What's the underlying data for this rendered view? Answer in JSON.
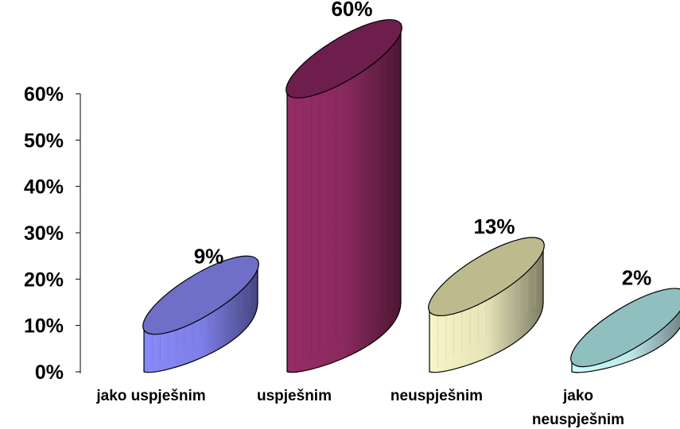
{
  "chart_data": {
    "type": "bar",
    "style": "3d-elliptic-cylinder",
    "categories": [
      "jako uspješnim",
      "uspješnim",
      "neuspješnim",
      "jako neuspješnim"
    ],
    "category_lines": [
      [
        "jako uspješnim"
      ],
      [
        "uspješnim"
      ],
      [
        "neuspješnim"
      ],
      [
        "jako",
        "neuspješnim"
      ]
    ],
    "values": [
      9,
      60,
      13,
      2
    ],
    "data_labels": [
      "9%",
      "60%",
      "13%",
      "2%"
    ],
    "y_ticks": [
      "0%",
      "10%",
      "20%",
      "30%",
      "40%",
      "50%",
      "60%"
    ],
    "ylim": [
      0,
      60
    ],
    "grid": false,
    "colors": [
      "#7f7fe8",
      "#8a2a5e",
      "#e6e4b8",
      "#bfe8ea"
    ],
    "top_colors": [
      "#6f6fc8",
      "#6e1e4c",
      "#bdbb8e",
      "#8fbfbf"
    ]
  }
}
